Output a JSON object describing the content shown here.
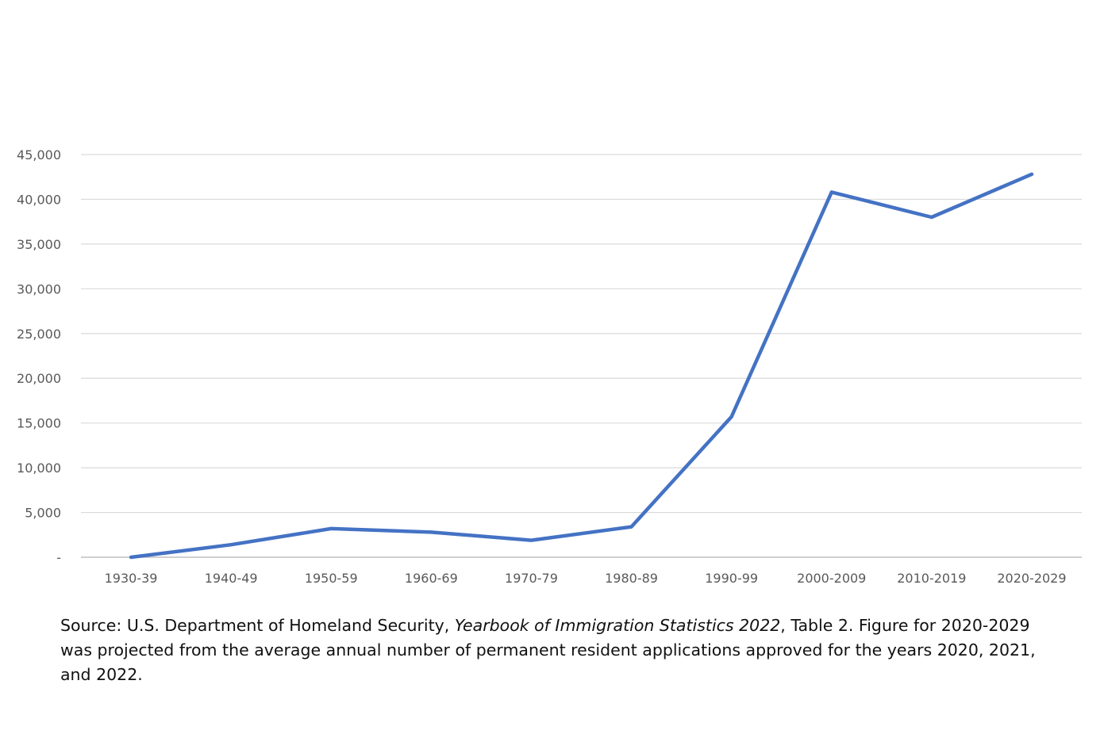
{
  "chart_data": {
    "type": "line",
    "categories": [
      "1930-39",
      "1940-49",
      "1950-59",
      "1960-69",
      "1970-79",
      "1980-89",
      "1990-99",
      "2000-2009",
      "2010-2019",
      "2020-2029"
    ],
    "series": [
      {
        "values": [
          0,
          1400,
          3200,
          2800,
          1900,
          3400,
          15700,
          40800,
          38000,
          42800
        ],
        "color": "#4472c4"
      }
    ],
    "ylim": [
      0,
      45000
    ],
    "yticks": [
      0,
      5000,
      10000,
      15000,
      20000,
      25000,
      30000,
      35000,
      40000,
      45000
    ],
    "ytick_labels": [
      "-",
      "5,000",
      "10,000",
      "15,000",
      "20,000",
      "25,000",
      "30,000",
      "35,000",
      "40,000",
      "45,000"
    ],
    "grid": true,
    "legend": "none"
  },
  "source": {
    "prefix": "Source: U.S. Department of Homeland Security, ",
    "publication": "Yearbook of Immigration Statistics 2022",
    "suffix": ", Table 2. Figure for 2020-2029 was projected from the average annual number of permanent resident applications approved for the years 2020, 2021, and 2022."
  }
}
